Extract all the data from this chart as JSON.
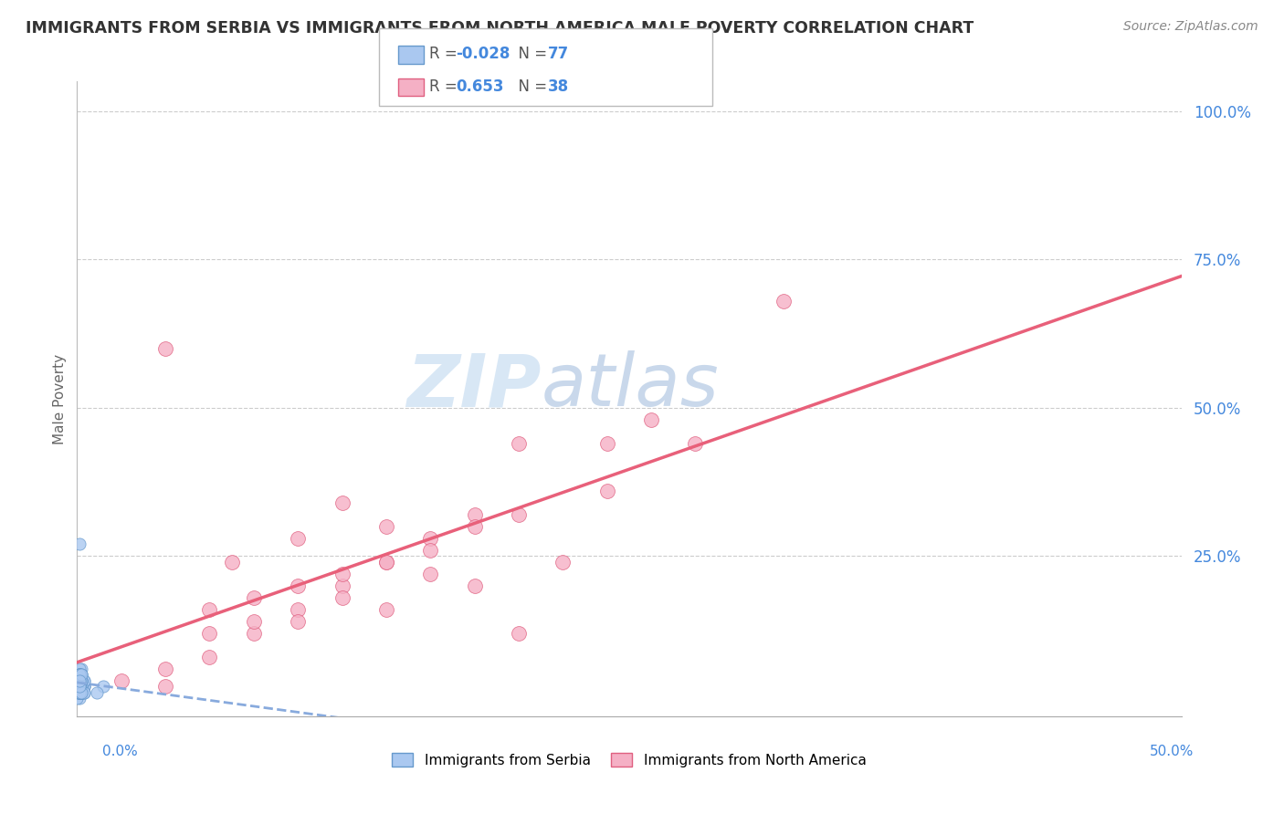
{
  "title": "IMMIGRANTS FROM SERBIA VS IMMIGRANTS FROM NORTH AMERICA MALE POVERTY CORRELATION CHART",
  "source": "Source: ZipAtlas.com",
  "ylabel": "Male Poverty",
  "yticks": [
    0.0,
    0.25,
    0.5,
    0.75,
    1.0
  ],
  "ytick_labels": [
    "",
    "25.0%",
    "50.0%",
    "75.0%",
    "100.0%"
  ],
  "xlim": [
    0.0,
    0.5
  ],
  "ylim": [
    -0.02,
    1.05
  ],
  "serbia_R": -0.028,
  "serbia_N": 77,
  "northamerica_R": 0.653,
  "northamerica_N": 38,
  "serbia_color": "#aac8f0",
  "northamerica_color": "#f5b0c5",
  "serbia_edge_color": "#6699cc",
  "northamerica_edge_color": "#e06080",
  "serbia_line_color": "#88aadd",
  "northamerica_line_color": "#e8607a",
  "serbia_scatter_x": [
    0.001,
    0.002,
    0.001,
    0.003,
    0.001,
    0.0,
    0.002,
    0.001,
    0.003,
    0.002,
    0.001,
    0.0,
    0.001,
    0.003,
    0.002,
    0.001,
    0.002,
    0.001,
    0.0,
    0.003,
    0.001,
    0.002,
    0.001,
    0.002,
    0.001,
    0.001,
    0.002,
    0.001,
    0.002,
    0.001,
    0.001,
    0.002,
    0.0,
    0.001,
    0.003,
    0.002,
    0.001,
    0.002,
    0.001,
    0.001,
    0.002,
    0.001,
    0.003,
    0.002,
    0.001,
    0.002,
    0.002,
    0.001,
    0.001,
    0.002,
    0.001,
    0.002,
    0.001,
    0.001,
    0.001,
    0.002,
    0.002,
    0.001,
    0.001,
    0.001,
    0.002,
    0.002,
    0.001,
    0.001,
    0.003,
    0.002,
    0.001,
    0.001,
    0.001,
    0.001,
    0.002,
    0.002,
    0.001,
    0.001,
    0.001,
    0.012,
    0.009
  ],
  "serbia_scatter_y": [
    0.01,
    0.03,
    0.05,
    0.02,
    0.04,
    0.01,
    0.06,
    0.02,
    0.03,
    0.04,
    0.05,
    0.02,
    0.04,
    0.03,
    0.05,
    0.03,
    0.02,
    0.04,
    0.05,
    0.03,
    0.02,
    0.04,
    0.06,
    0.03,
    0.02,
    0.04,
    0.03,
    0.05,
    0.04,
    0.02,
    0.03,
    0.04,
    0.03,
    0.02,
    0.04,
    0.03,
    0.05,
    0.03,
    0.04,
    0.02,
    0.05,
    0.03,
    0.04,
    0.02,
    0.03,
    0.04,
    0.02,
    0.03,
    0.05,
    0.04,
    0.03,
    0.02,
    0.04,
    0.03,
    0.02,
    0.04,
    0.03,
    0.05,
    0.02,
    0.03,
    0.04,
    0.02,
    0.03,
    0.05,
    0.02,
    0.04,
    0.03,
    0.02,
    0.04,
    0.03,
    0.02,
    0.05,
    0.03,
    0.04,
    0.27,
    0.03,
    0.02
  ],
  "northamerica_scatter_x": [
    0.02,
    0.04,
    0.06,
    0.08,
    0.1,
    0.12,
    0.14,
    0.16,
    0.18,
    0.04,
    0.06,
    0.08,
    0.1,
    0.12,
    0.14,
    0.16,
    0.18,
    0.12,
    0.2,
    0.07,
    0.1,
    0.14,
    0.2,
    0.24,
    0.28,
    0.08,
    0.12,
    0.16,
    0.2,
    0.24,
    0.1,
    0.14,
    0.18,
    0.22,
    0.26,
    0.06,
    0.32,
    0.04
  ],
  "northamerica_scatter_y": [
    0.04,
    0.03,
    0.08,
    0.12,
    0.16,
    0.2,
    0.24,
    0.28,
    0.32,
    0.6,
    0.16,
    0.18,
    0.2,
    0.22,
    0.24,
    0.26,
    0.3,
    0.34,
    0.44,
    0.24,
    0.28,
    0.3,
    0.32,
    0.36,
    0.44,
    0.14,
    0.18,
    0.22,
    0.12,
    0.44,
    0.14,
    0.16,
    0.2,
    0.24,
    0.48,
    0.12,
    0.68,
    0.06
  ],
  "watermark_zip": "ZIP",
  "watermark_atlas": "atlas",
  "background_color": "#ffffff",
  "grid_color": "#cccccc",
  "title_color": "#333333",
  "source_color": "#888888",
  "ylabel_color": "#666666",
  "tick_label_color": "#4488dd",
  "legend_text_color": "#555555",
  "legend_value_color": "#4488dd"
}
